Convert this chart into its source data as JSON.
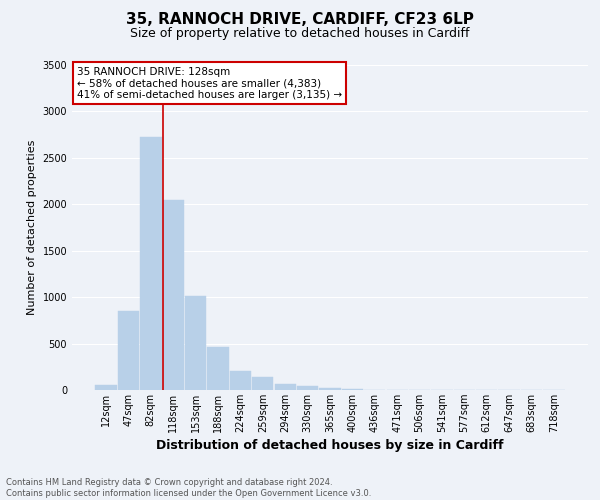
{
  "title_line1": "35, RANNOCH DRIVE, CARDIFF, CF23 6LP",
  "title_line2": "Size of property relative to detached houses in Cardiff",
  "xlabel": "Distribution of detached houses by size in Cardiff",
  "ylabel": "Number of detached properties",
  "categories": [
    "12sqm",
    "47sqm",
    "82sqm",
    "118sqm",
    "153sqm",
    "188sqm",
    "224sqm",
    "259sqm",
    "294sqm",
    "330sqm",
    "365sqm",
    "400sqm",
    "436sqm",
    "471sqm",
    "506sqm",
    "541sqm",
    "577sqm",
    "612sqm",
    "647sqm",
    "683sqm",
    "718sqm"
  ],
  "values": [
    50,
    855,
    2720,
    2050,
    1010,
    460,
    210,
    135,
    70,
    40,
    20,
    10,
    5,
    3,
    1,
    0,
    0,
    0,
    0,
    0,
    0
  ],
  "bar_color": "#b8d0e8",
  "bar_edge_color": "#b8d0e8",
  "vline_color": "#cc0000",
  "vline_pos": 3.0,
  "ylim": [
    0,
    3500
  ],
  "yticks": [
    0,
    500,
    1000,
    1500,
    2000,
    2500,
    3000,
    3500
  ],
  "annotation_title": "35 RANNOCH DRIVE: 128sqm",
  "annotation_line2": "← 58% of detached houses are smaller (4,383)",
  "annotation_line3": "41% of semi-detached houses are larger (3,135) →",
  "annotation_box_color": "#cc0000",
  "footer_line1": "Contains HM Land Registry data © Crown copyright and database right 2024.",
  "footer_line2": "Contains public sector information licensed under the Open Government Licence v3.0.",
  "background_color": "#eef2f8",
  "plot_bg_color": "#eef2f8",
  "grid_color": "#ffffff",
  "title1_fontsize": 11,
  "title2_fontsize": 9,
  "tick_fontsize": 7,
  "ylabel_fontsize": 8,
  "xlabel_fontsize": 9,
  "annotation_fontsize": 7.5,
  "footer_fontsize": 6
}
